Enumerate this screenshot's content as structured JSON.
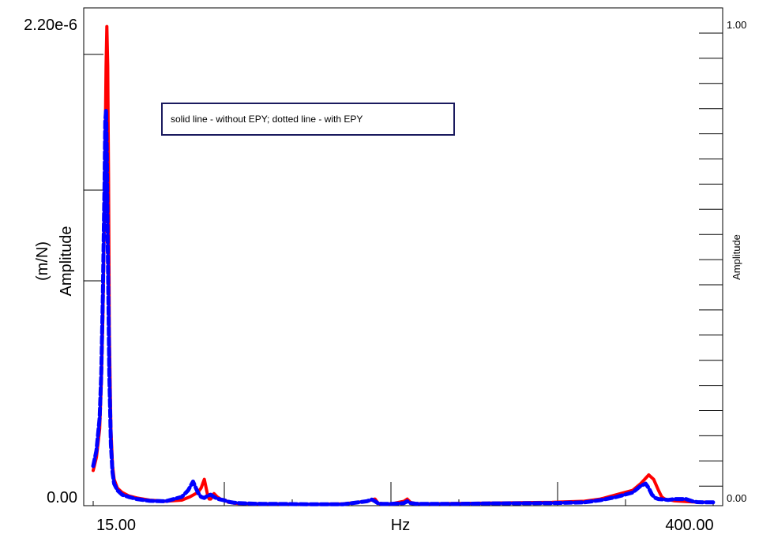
{
  "chart_data": {
    "type": "line",
    "xlabel": "Hz",
    "ylabel": [
      "(m/N)",
      "Amplitude"
    ],
    "y2label": "Amplitude",
    "x_tick_labels": {
      "left": "15.00",
      "right": "400.00"
    },
    "y_tick_labels": {
      "top": "2.20e-6",
      "bottom": "0.00"
    },
    "y2_tick_labels": {
      "top": "1.00",
      "bottom": "0.00"
    },
    "xlim": [
      15,
      400
    ],
    "ylim": [
      0,
      2.2e-06
    ],
    "legend_text": "solid line - without EPY; dotted line - with EPY",
    "colors": {
      "without_epy": "#ff0000",
      "with_epy": "#0000ff"
    },
    "series": [
      {
        "key": "without_epy",
        "style": "solid",
        "color": "#ff0000",
        "x": [
          15,
          17,
          19,
          20,
          21,
          22,
          23,
          23.5,
          24,
          24.5,
          25,
          26,
          27,
          28,
          30,
          33,
          37,
          42,
          50,
          60,
          70,
          75,
          80,
          82,
          84,
          86,
          87,
          88,
          89,
          90,
          92,
          94,
          96,
          97,
          98,
          99,
          100,
          102,
          105,
          110,
          120,
          130,
          150,
          170,
          185,
          190,
          192,
          193,
          194,
          196,
          200,
          208,
          210,
          212,
          215,
          220,
          240,
          260,
          300,
          320,
          330,
          340,
          350,
          355,
          360,
          363,
          366,
          368,
          370,
          372,
          374,
          376,
          380,
          385,
          390,
          395,
          400
        ],
        "y": [
          1.6e-07,
          2.2e-07,
          3.5e-07,
          5.5e-07,
          8.5e-07,
          1.35e-06,
          2e-06,
          2.18e-06,
          2e-06,
          1.5e-06,
          8e-07,
          3.5e-07,
          1.8e-07,
          1.2e-07,
          8e-08,
          6e-08,
          4.5e-08,
          3.5e-08,
          2.5e-08,
          2e-08,
          2.5e-08,
          4e-08,
          6e-08,
          8e-08,
          1.2e-07,
          5e-08,
          3e-08,
          3e-08,
          4e-08,
          5.5e-08,
          4e-08,
          3e-08,
          2.5e-08,
          2.5e-08,
          2e-08,
          1.5e-08,
          1.5e-08,
          1.2e-08,
          1e-08,
          1e-08,
          8e-09,
          8e-09,
          6e-09,
          8e-09,
          2e-08,
          3e-08,
          1e-08,
          1e-08,
          1e-08,
          8e-09,
          8e-09,
          2e-08,
          3e-08,
          1.5e-08,
          1e-08,
          8e-09,
          1e-08,
          1.2e-08,
          1.5e-08,
          2e-08,
          3e-08,
          5e-08,
          7e-08,
          1e-07,
          1.4e-07,
          1.2e-07,
          7e-08,
          4e-08,
          3e-08,
          2.5e-08,
          2.5e-08,
          2.2e-08,
          2e-08,
          1.8e-08,
          1.6e-08,
          1.6e-08,
          1.6e-08
        ]
      },
      {
        "key": "with_epy",
        "style": "dashed",
        "color": "#0000ff",
        "x": [
          15,
          17,
          19,
          20,
          21,
          22,
          22.5,
          23,
          23.5,
          24,
          25,
          26,
          27,
          28,
          30,
          33,
          37,
          42,
          50,
          60,
          70,
          74,
          77,
          80,
          82,
          84,
          86,
          88,
          90,
          92,
          94,
          96,
          98,
          100,
          102,
          105,
          110,
          120,
          130,
          150,
          170,
          185,
          188,
          190,
          192,
          194,
          200,
          208,
          210,
          212,
          215,
          220,
          240,
          260,
          300,
          320,
          330,
          340,
          350,
          355,
          358,
          360,
          362,
          364,
          366,
          370,
          372,
          374,
          376,
          380,
          383,
          385,
          387,
          390,
          395,
          400
        ],
        "y": [
          1.8e-07,
          2.5e-07,
          4e-07,
          6e-07,
          9.5e-07,
          1.45e-06,
          1.75e-06,
          1.8e-06,
          1.6e-06,
          1.2e-06,
          6e-07,
          2.8e-07,
          1.5e-07,
          1e-07,
          7e-08,
          5e-08,
          4e-08,
          3e-08,
          2.2e-08,
          2e-08,
          4e-08,
          7e-08,
          1.1e-07,
          6e-08,
          4e-08,
          3.5e-08,
          4.5e-08,
          5e-08,
          4e-08,
          3.2e-08,
          2.8e-08,
          2.5e-08,
          2e-08,
          1.6e-08,
          1.4e-08,
          1.2e-08,
          1e-08,
          8e-09,
          8e-09,
          6e-09,
          6e-09,
          2e-08,
          2.8e-08,
          2e-08,
          1e-08,
          8e-09,
          8e-09,
          1.2e-08,
          2e-08,
          1.2e-08,
          9e-09,
          8e-09,
          8e-09,
          1e-08,
          1.2e-08,
          1.5e-08,
          2.5e-08,
          4e-08,
          6e-08,
          9e-08,
          1e-07,
          8e-08,
          5e-08,
          3.5e-08,
          3e-08,
          2.8e-08,
          2.6e-08,
          2.8e-08,
          3e-08,
          3e-08,
          3e-08,
          2.5e-08,
          2e-08,
          1.6e-08,
          1.5e-08,
          1.5e-08
        ]
      }
    ]
  }
}
